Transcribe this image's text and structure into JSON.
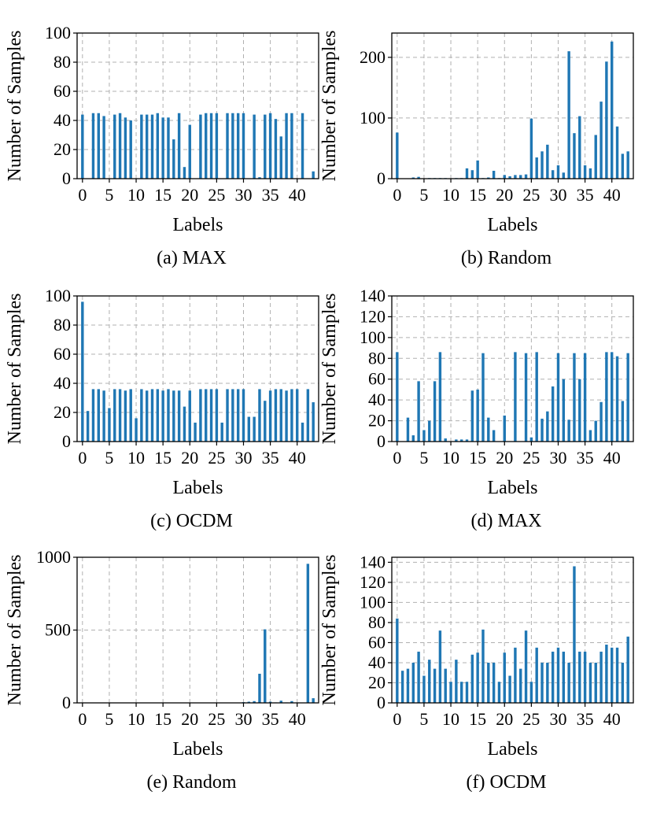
{
  "colors": {
    "bar": "#1f77b4",
    "grid": "#b0b0b0",
    "axis": "#000000"
  },
  "chart_data": [
    {
      "panel_id": "a",
      "type": "bar",
      "caption": "(a) MAX",
      "xlabel": "Labels",
      "ylabel": "Number of Samples",
      "ylim": [
        0,
        100
      ],
      "yticks": [
        0,
        20,
        40,
        60,
        80,
        100
      ],
      "ytick_labels": [
        "0",
        "20",
        "40",
        "60",
        "80",
        "100"
      ],
      "xticks": [
        0,
        5,
        10,
        15,
        20,
        25,
        30,
        35,
        40
      ],
      "xtick_labels": [
        "0",
        "5",
        "10",
        "15",
        "20",
        "25",
        "30",
        "35",
        "40"
      ],
      "xlim": [
        -1,
        44
      ],
      "categories": [
        0,
        1,
        2,
        3,
        4,
        5,
        6,
        7,
        8,
        9,
        10,
        11,
        12,
        13,
        14,
        15,
        16,
        17,
        18,
        19,
        20,
        21,
        22,
        23,
        24,
        25,
        26,
        27,
        28,
        29,
        30,
        31,
        32,
        33,
        34,
        35,
        36,
        37,
        38,
        39,
        40,
        41,
        42,
        43
      ],
      "values": [
        44,
        0,
        45,
        45,
        43,
        0,
        44,
        45,
        42,
        40,
        0,
        44,
        44,
        44,
        45,
        42,
        42,
        27,
        45,
        8,
        37,
        0,
        44,
        45,
        45,
        45,
        0,
        45,
        45,
        45,
        45,
        0,
        44,
        1,
        44,
        45,
        41,
        29,
        45,
        45,
        0,
        45,
        0,
        5
      ]
    },
    {
      "panel_id": "b",
      "type": "bar",
      "caption": "(b) Random",
      "xlabel": "Labels",
      "ylabel": "Number of Samples",
      "ylim": [
        0,
        240
      ],
      "yticks": [
        0,
        100,
        200
      ],
      "ytick_labels": [
        "0",
        "100",
        "200"
      ],
      "xticks": [
        0,
        5,
        10,
        15,
        20,
        25,
        30,
        35,
        40
      ],
      "xtick_labels": [
        "0",
        "5",
        "10",
        "15",
        "20",
        "25",
        "30",
        "35",
        "40"
      ],
      "xlim": [
        -1,
        44
      ],
      "categories": [
        0,
        1,
        2,
        3,
        4,
        5,
        6,
        7,
        8,
        9,
        10,
        11,
        12,
        13,
        14,
        15,
        16,
        17,
        18,
        19,
        20,
        21,
        22,
        23,
        24,
        25,
        26,
        27,
        28,
        29,
        30,
        31,
        32,
        33,
        34,
        35,
        36,
        37,
        38,
        39,
        40,
        41,
        42,
        43
      ],
      "values": [
        76,
        0,
        0,
        2,
        3,
        0,
        1,
        1,
        1,
        1,
        0,
        1,
        1,
        17,
        14,
        30,
        1,
        2,
        13,
        1,
        6,
        4,
        6,
        6,
        7,
        99,
        35,
        45,
        56,
        14,
        22,
        10,
        210,
        75,
        103,
        22,
        17,
        72,
        127,
        193,
        226,
        86,
        41,
        45
      ]
    },
    {
      "panel_id": "c",
      "type": "bar",
      "caption": "(c) OCDM",
      "xlabel": "Labels",
      "ylabel": "Number of Samples",
      "ylim": [
        0,
        100
      ],
      "yticks": [
        0,
        20,
        40,
        60,
        80,
        100
      ],
      "ytick_labels": [
        "0",
        "20",
        "40",
        "60",
        "80",
        "100"
      ],
      "xticks": [
        0,
        5,
        10,
        15,
        20,
        25,
        30,
        35,
        40
      ],
      "xtick_labels": [
        "0",
        "5",
        "10",
        "15",
        "20",
        "25",
        "30",
        "35",
        "40"
      ],
      "xlim": [
        -1,
        44
      ],
      "categories": [
        0,
        1,
        2,
        3,
        4,
        5,
        6,
        7,
        8,
        9,
        10,
        11,
        12,
        13,
        14,
        15,
        16,
        17,
        18,
        19,
        20,
        21,
        22,
        23,
        24,
        25,
        26,
        27,
        28,
        29,
        30,
        31,
        32,
        33,
        34,
        35,
        36,
        37,
        38,
        39,
        40,
        41,
        42,
        43
      ],
      "values": [
        96,
        21,
        36,
        36,
        35,
        23,
        36,
        36,
        35,
        36,
        16,
        36,
        35,
        36,
        36,
        35,
        36,
        35,
        35,
        24,
        35,
        13,
        36,
        36,
        36,
        36,
        13,
        36,
        36,
        36,
        36,
        17,
        17,
        36,
        28,
        35,
        36,
        36,
        35,
        36,
        36,
        13,
        36,
        27
      ]
    },
    {
      "panel_id": "d",
      "type": "bar",
      "caption": "(d) MAX",
      "xlabel": "Labels",
      "ylabel": "Number of Samples",
      "ylim": [
        0,
        140
      ],
      "yticks": [
        0,
        20,
        40,
        60,
        80,
        100,
        120,
        140
      ],
      "ytick_labels": [
        "0",
        "20",
        "40",
        "60",
        "80",
        "100",
        "120",
        "140"
      ],
      "xticks": [
        0,
        5,
        10,
        15,
        20,
        25,
        30,
        35,
        40
      ],
      "xtick_labels": [
        "0",
        "5",
        "10",
        "15",
        "20",
        "25",
        "30",
        "35",
        "40"
      ],
      "xlim": [
        -1,
        44
      ],
      "categories": [
        0,
        1,
        2,
        3,
        4,
        5,
        6,
        7,
        8,
        9,
        10,
        11,
        12,
        13,
        14,
        15,
        16,
        17,
        18,
        19,
        20,
        21,
        22,
        23,
        24,
        25,
        26,
        27,
        28,
        29,
        30,
        31,
        32,
        33,
        34,
        35,
        36,
        37,
        38,
        39,
        40,
        41,
        42,
        43
      ],
      "values": [
        86,
        0,
        23,
        6,
        58,
        11,
        20,
        58,
        86,
        3,
        0,
        2,
        2,
        2,
        49,
        50,
        85,
        23,
        11,
        0,
        25,
        0,
        86,
        0,
        85,
        4,
        86,
        22,
        29,
        53,
        85,
        60,
        21,
        85,
        60,
        85,
        11,
        20,
        38,
        86,
        86,
        82,
        39,
        85
      ]
    },
    {
      "panel_id": "e",
      "type": "bar",
      "caption": "(e) Random",
      "xlabel": "Labels",
      "ylabel": "Number of Samples",
      "ylim": [
        0,
        1000
      ],
      "yticks": [
        0,
        500,
        1000
      ],
      "ytick_labels": [
        "0",
        "500",
        "1000"
      ],
      "xticks": [
        0,
        5,
        10,
        15,
        20,
        25,
        30,
        35,
        40
      ],
      "xtick_labels": [
        "0",
        "5",
        "10",
        "15",
        "20",
        "25",
        "30",
        "35",
        "40"
      ],
      "xlim": [
        -1,
        44
      ],
      "categories": [
        0,
        1,
        2,
        3,
        4,
        5,
        6,
        7,
        8,
        9,
        10,
        11,
        12,
        13,
        14,
        15,
        16,
        17,
        18,
        19,
        20,
        21,
        22,
        23,
        24,
        25,
        26,
        27,
        28,
        29,
        30,
        31,
        32,
        33,
        34,
        35,
        36,
        37,
        38,
        39,
        40,
        41,
        42,
        43
      ],
      "values": [
        2,
        1,
        1,
        1,
        1,
        1,
        1,
        1,
        1,
        1,
        1,
        1,
        1,
        1,
        1,
        1,
        1,
        1,
        1,
        1,
        1,
        1,
        1,
        1,
        1,
        1,
        1,
        1,
        1,
        2,
        5,
        8,
        12,
        200,
        505,
        8,
        3,
        15,
        3,
        12,
        3,
        2,
        955,
        32
      ]
    },
    {
      "panel_id": "f",
      "type": "bar",
      "caption": "(f) OCDM",
      "xlabel": "Labels",
      "ylabel": "Number of Samples",
      "ylim": [
        0,
        145
      ],
      "yticks": [
        0,
        20,
        40,
        60,
        80,
        100,
        120,
        140
      ],
      "ytick_labels": [
        "0",
        "20",
        "40",
        "60",
        "80",
        "100",
        "120",
        "140"
      ],
      "xticks": [
        0,
        5,
        10,
        15,
        20,
        25,
        30,
        35,
        40
      ],
      "xtick_labels": [
        "0",
        "5",
        "10",
        "15",
        "20",
        "25",
        "30",
        "35",
        "40"
      ],
      "xlim": [
        -1,
        44
      ],
      "categories": [
        0,
        1,
        2,
        3,
        4,
        5,
        6,
        7,
        8,
        9,
        10,
        11,
        12,
        13,
        14,
        15,
        16,
        17,
        18,
        19,
        20,
        21,
        22,
        23,
        24,
        25,
        26,
        27,
        28,
        29,
        30,
        31,
        32,
        33,
        34,
        35,
        36,
        37,
        38,
        39,
        40,
        41,
        42,
        43
      ],
      "values": [
        84,
        32,
        34,
        40,
        51,
        27,
        43,
        34,
        72,
        34,
        21,
        43,
        21,
        21,
        48,
        50,
        73,
        40,
        40,
        21,
        50,
        27,
        55,
        34,
        72,
        21,
        55,
        40,
        40,
        51,
        55,
        51,
        40,
        136,
        51,
        51,
        40,
        40,
        51,
        58,
        55,
        55,
        40,
        66
      ]
    }
  ]
}
